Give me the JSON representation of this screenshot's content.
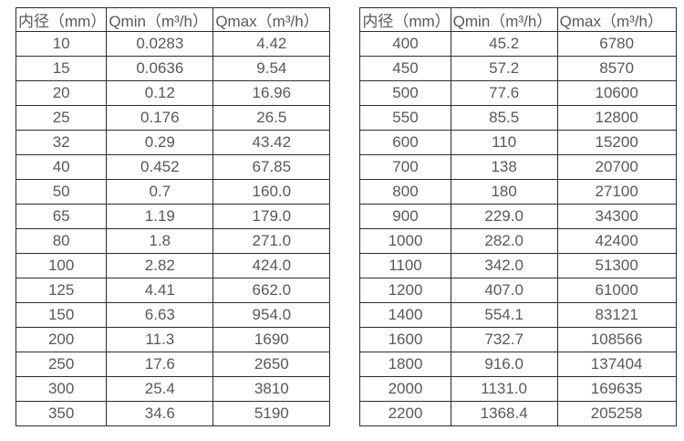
{
  "tables": [
    {
      "name": "small-diameter-flow-table",
      "headers": [
        "内径（mm）",
        "Qmin（m³/h）",
        "Qmax（m³/h）"
      ],
      "rows": [
        [
          "10",
          "0.0283",
          "4.42"
        ],
        [
          "15",
          "0.0636",
          "9.54"
        ],
        [
          "20",
          "0.12",
          "16.96"
        ],
        [
          "25",
          "0.176",
          "26.5"
        ],
        [
          "32",
          "0.29",
          "43.42"
        ],
        [
          "40",
          "0.452",
          "67.85"
        ],
        [
          "50",
          "0.7",
          "160.0"
        ],
        [
          "65",
          "1.19",
          "179.0"
        ],
        [
          "80",
          "1.8",
          "271.0"
        ],
        [
          "100",
          "2.82",
          "424.0"
        ],
        [
          "125",
          "4.41",
          "662.0"
        ],
        [
          "150",
          "6.63",
          "954.0"
        ],
        [
          "200",
          "11.3",
          "1690"
        ],
        [
          "250",
          "17.6",
          "2650"
        ],
        [
          "300",
          "25.4",
          "3810"
        ],
        [
          "350",
          "34.6",
          "5190"
        ]
      ]
    },
    {
      "name": "large-diameter-flow-table",
      "headers": [
        "内径（mm）",
        "Qmin（m³/h）",
        "Qmax（m³/h）"
      ],
      "rows": [
        [
          "400",
          "45.2",
          "6780"
        ],
        [
          "450",
          "57.2",
          "8570"
        ],
        [
          "500",
          "77.6",
          "10600"
        ],
        [
          "550",
          "85.5",
          "12800"
        ],
        [
          "600",
          "110",
          "15200"
        ],
        [
          "700",
          "138",
          "20700"
        ],
        [
          "800",
          "180",
          "27100"
        ],
        [
          "900",
          "229.0",
          "34300"
        ],
        [
          "1000",
          "282.0",
          "42400"
        ],
        [
          "1100",
          "342.0",
          "51300"
        ],
        [
          "1200",
          "407.0",
          "61000"
        ],
        [
          "1400",
          "554.1",
          "83121"
        ],
        [
          "1600",
          "732.7",
          "108566"
        ],
        [
          "1800",
          "916.0",
          "137404"
        ],
        [
          "2000",
          "1131.0",
          "169635"
        ],
        [
          "2200",
          "1368.4",
          "205258"
        ]
      ]
    }
  ],
  "colors": {
    "border": "#2c2c2c",
    "text": "#58585a",
    "background": "#ffffff"
  }
}
